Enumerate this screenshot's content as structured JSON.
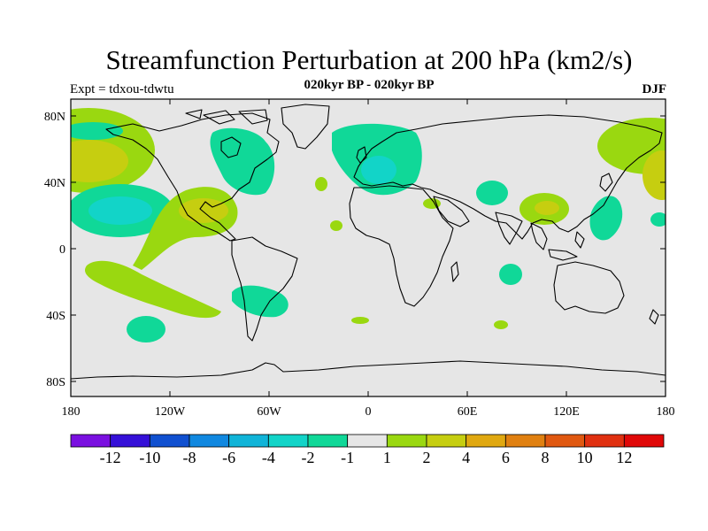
{
  "title": "Streamfunction Perturbation at 200 hPa (km2/s)",
  "subtitle": "020kyr BP - 020kyr BP",
  "expt_label": "Expt = tdxou-tdwtu",
  "season": "DJF",
  "lat_ticks": [
    "80N",
    "40N",
    "0",
    "40S",
    "80S"
  ],
  "lon_ticks": [
    "180",
    "120W",
    "60W",
    "0",
    "60E",
    "120E",
    "180"
  ],
  "colorbar": {
    "labels": [
      "-12",
      "-10",
      "-8",
      "-6",
      "-4",
      "-2",
      "-1",
      "1",
      "2",
      "4",
      "6",
      "8",
      "10",
      "12"
    ],
    "colors": [
      "#7a10e0",
      "#3510d8",
      "#1050d0",
      "#1088e0",
      "#10b4d8",
      "#12d4c8",
      "#10d898",
      "#e6e6e6",
      "#9ad810",
      "#c6ce10",
      "#e0a810",
      "#e08010",
      "#e05810",
      "#e03010",
      "#e00808"
    ]
  },
  "colors": {
    "background": "#e6e6e6",
    "coastline": "#000000"
  }
}
